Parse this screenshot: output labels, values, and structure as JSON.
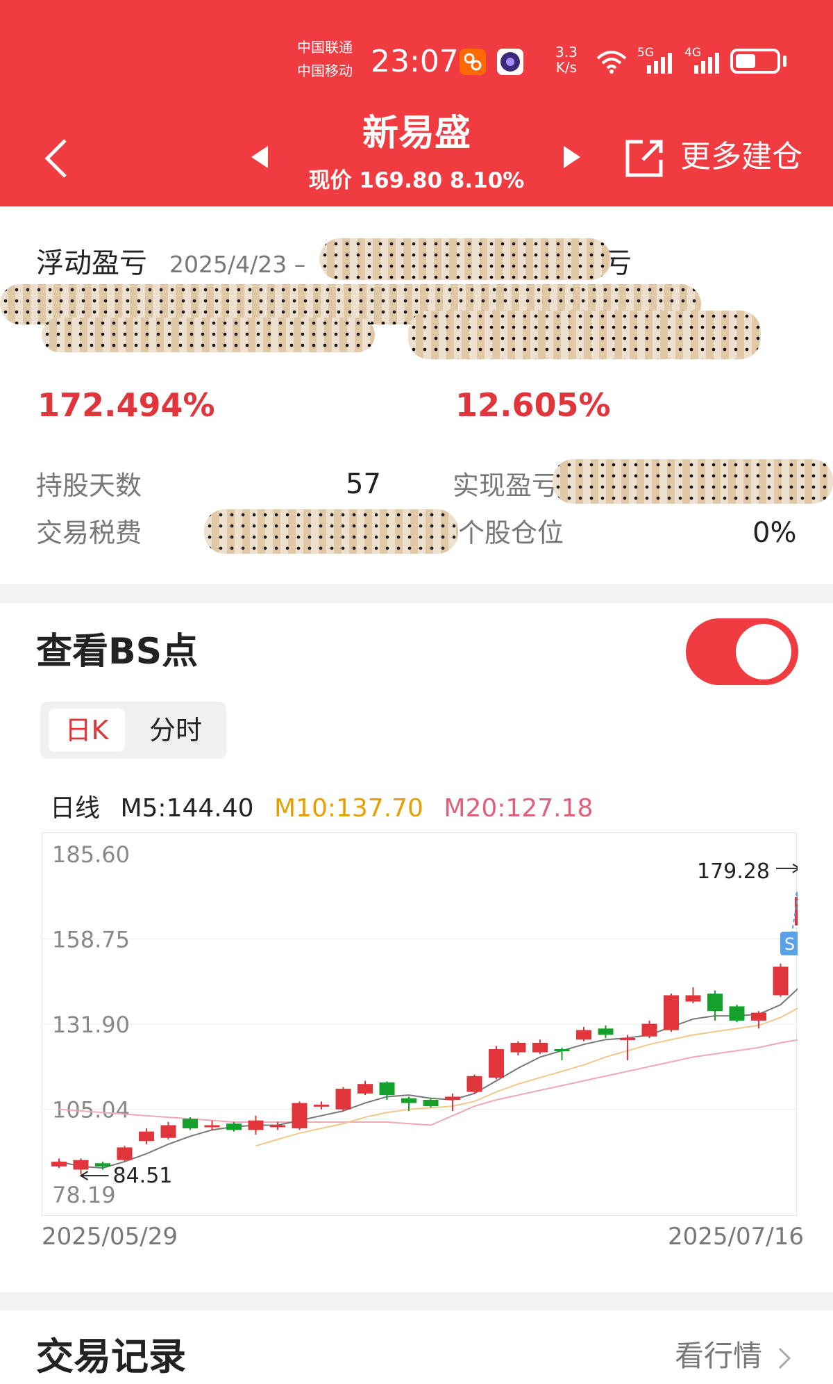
{
  "status_bar": {
    "carrier1": "中国联通",
    "carrier2": "中国移动",
    "time": "23:07",
    "speed_value": "3.3",
    "speed_unit": "K/s",
    "net1": "5G",
    "net2": "4G"
  },
  "header": {
    "stock_name": "新易盛",
    "price_text": "现价 169.80 8.10%",
    "more_label": "更多建仓"
  },
  "pl_card": {
    "title": "浮动盈亏",
    "date_range_start": "2025/4/23 –",
    "title_right_partial": "盈亏",
    "pct_left": "172.494%",
    "pct_right": "12.605%",
    "hold_days_label": "持股天数",
    "hold_days_value": "57",
    "realized_label": "实现盈亏",
    "fee_label": "交易税费",
    "position_label": "个股仓位",
    "position_value": "0%"
  },
  "bs_card": {
    "title": "查看BS点",
    "toggle_on": true,
    "tab_day": "日K",
    "tab_intraday": "分时",
    "ma_label": "日线",
    "ma5": "M5:144.40",
    "ma10": "M10:137.70",
    "ma20": "M20:127.18",
    "colors": {
      "ma5": "#555555",
      "ma10": "#e8a000",
      "ma20": "#e0607a",
      "up": "#e0353a",
      "down": "#13a12b"
    }
  },
  "chart_data": {
    "type": "candlestick",
    "y_ticks": [
      "185.60",
      "158.75",
      "131.90",
      "105.04",
      "78.19"
    ],
    "ylim": [
      78.19,
      185.6
    ],
    "grid": true,
    "high_label": "179.28",
    "low_label": "84.51",
    "sell_marker": "S",
    "x_start_label": "2025/05/29",
    "x_end_label": "2025/07/16",
    "candles": [
      {
        "o": 87.0,
        "c": 88.5,
        "h": 89.5,
        "l": 86.5
      },
      {
        "o": 86.0,
        "c": 89.0,
        "h": 89.5,
        "l": 84.51
      },
      {
        "o": 88.0,
        "c": 87.0,
        "h": 88.5,
        "l": 86.0
      },
      {
        "o": 89.0,
        "c": 93.0,
        "h": 93.5,
        "l": 88.5
      },
      {
        "o": 95.0,
        "c": 98.0,
        "h": 99.0,
        "l": 94.0
      },
      {
        "o": 96.0,
        "c": 100.0,
        "h": 101.0,
        "l": 95.5
      },
      {
        "o": 102.0,
        "c": 99.0,
        "h": 102.5,
        "l": 98.5
      },
      {
        "o": 99.5,
        "c": 100.0,
        "h": 101.5,
        "l": 98.5
      },
      {
        "o": 100.5,
        "c": 98.5,
        "h": 101.0,
        "l": 98.0
      },
      {
        "o": 98.5,
        "c": 101.5,
        "h": 103.0,
        "l": 97.0
      },
      {
        "o": 99.5,
        "c": 100.0,
        "h": 101.0,
        "l": 98.5
      },
      {
        "o": 99.0,
        "c": 107.0,
        "h": 107.5,
        "l": 98.5
      },
      {
        "o": 106.0,
        "c": 106.5,
        "h": 107.5,
        "l": 105.0
      },
      {
        "o": 105.0,
        "c": 111.5,
        "h": 112.0,
        "l": 104.5
      },
      {
        "o": 110.0,
        "c": 113.0,
        "h": 114.0,
        "l": 109.5
      },
      {
        "o": 113.5,
        "c": 109.5,
        "h": 113.8,
        "l": 108.0
      },
      {
        "o": 108.5,
        "c": 107.0,
        "h": 109.0,
        "l": 104.5
      },
      {
        "o": 108.0,
        "c": 106.0,
        "h": 108.5,
        "l": 105.5
      },
      {
        "o": 108.0,
        "c": 109.0,
        "h": 110.0,
        "l": 104.5
      },
      {
        "o": 110.5,
        "c": 115.5,
        "h": 116.0,
        "l": 110.0
      },
      {
        "o": 115.0,
        "c": 124.0,
        "h": 125.0,
        "l": 114.5
      },
      {
        "o": 123.0,
        "c": 126.0,
        "h": 126.5,
        "l": 122.0
      },
      {
        "o": 123.0,
        "c": 126.0,
        "h": 127.0,
        "l": 122.5
      },
      {
        "o": 124.0,
        "c": 123.5,
        "h": 124.5,
        "l": 120.5
      },
      {
        "o": 127.0,
        "c": 130.0,
        "h": 131.0,
        "l": 126.5
      },
      {
        "o": 130.5,
        "c": 128.5,
        "h": 131.5,
        "l": 127.5
      },
      {
        "o": 127.0,
        "c": 127.5,
        "h": 128.5,
        "l": 120.5
      },
      {
        "o": 128.0,
        "c": 132.0,
        "h": 133.0,
        "l": 127.5
      },
      {
        "o": 130.0,
        "c": 141.0,
        "h": 141.5,
        "l": 129.5
      },
      {
        "o": 139.0,
        "c": 141.0,
        "h": 143.5,
        "l": 138.5
      },
      {
        "o": 141.5,
        "c": 136.0,
        "h": 142.5,
        "l": 133.0
      },
      {
        "o": 137.5,
        "c": 133.0,
        "h": 138.0,
        "l": 132.5
      },
      {
        "o": 133.0,
        "c": 135.5,
        "h": 136.0,
        "l": 130.5
      },
      {
        "o": 141.0,
        "c": 150.0,
        "h": 151.0,
        "l": 140.5
      },
      {
        "o": 163.0,
        "c": 172.0,
        "h": 179.28,
        "l": 158.0
      }
    ],
    "ma5": [
      88.5,
      87.0,
      86.5,
      88.5,
      91.0,
      94.0,
      96.5,
      98.5,
      99.5,
      100.0,
      100.0,
      101.5,
      103.0,
      104.5,
      107.0,
      109.0,
      109.5,
      108.5,
      108.0,
      110.0,
      114.0,
      118.0,
      121.5,
      123.5,
      125.5,
      127.0,
      127.5,
      128.5,
      131.0,
      133.5,
      134.5,
      134.5,
      135.0,
      138.0,
      144.4
    ],
    "ma10": [
      null,
      null,
      null,
      null,
      null,
      null,
      null,
      null,
      null,
      93.5,
      95.5,
      97.5,
      99.0,
      100.5,
      102.5,
      104.0,
      105.0,
      105.5,
      106.0,
      107.5,
      110.5,
      113.0,
      115.0,
      117.0,
      119.0,
      121.5,
      123.5,
      125.5,
      127.0,
      128.5,
      129.5,
      130.5,
      131.5,
      134.0,
      137.7
    ],
    "ma20": [
      105.0,
      104.5,
      104.0,
      103.5,
      103.0,
      102.5,
      102.0,
      101.5,
      101.0,
      101.0,
      101.0,
      101.0,
      101.0,
      101.0,
      101.0,
      101.0,
      100.5,
      100.0,
      103.0,
      106.0,
      108.0,
      109.5,
      111.0,
      112.5,
      114.0,
      115.5,
      117.0,
      118.5,
      120.0,
      121.5,
      122.5,
      123.5,
      124.5,
      126.0,
      127.18
    ]
  },
  "trade_card": {
    "title": "交易记录",
    "link": "看行情"
  }
}
